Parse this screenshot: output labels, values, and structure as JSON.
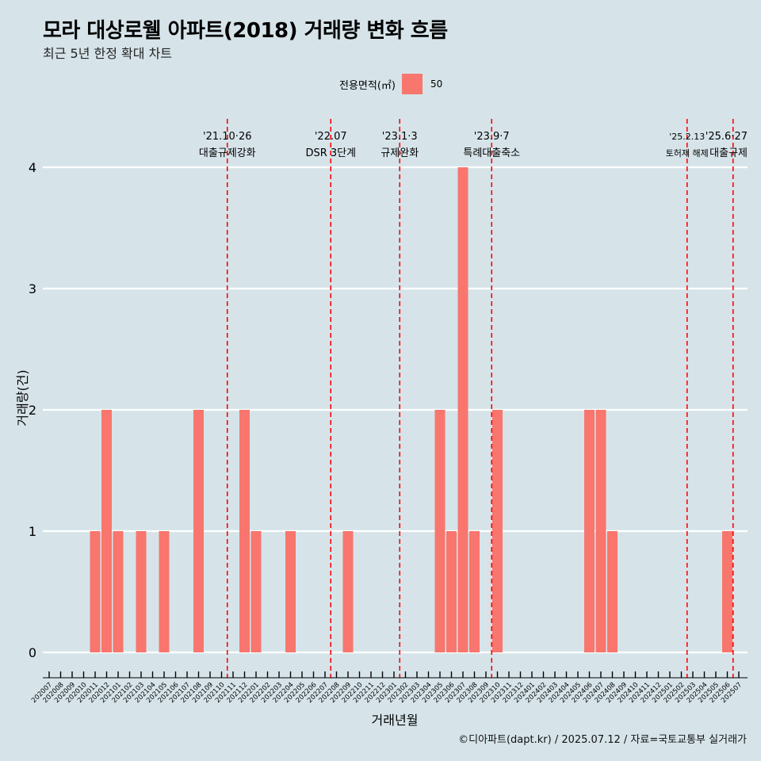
{
  "title": "모라 대상로웰 아파트(2018) 거래량 변화 흐름",
  "subtitle": "최근 5년 한정 확대 차트",
  "caption": "©디아파트(dapt.kr) / 2025.07.12 / 자료=국토교통부 실거래가",
  "legend": {
    "title": "전용면적(㎡)",
    "entries": [
      "50"
    ]
  },
  "colors": {
    "background": "#d6e4ea",
    "bar": "#f8766d",
    "event_line": "#ff0000",
    "grid": "#ffffff"
  },
  "chart_data": {
    "type": "bar",
    "title": "모라 대상로웰 아파트(2018) 거래량 변화 흐름",
    "subtitle": "최근 5년 한정 확대 차트",
    "xlabel": "거래년월",
    "ylabel": "거래량(건)",
    "ylim": [
      0,
      4
    ],
    "yticks": [
      0,
      1,
      2,
      3,
      4
    ],
    "grid": true,
    "legend_position": "top",
    "categories": [
      "202007",
      "202008",
      "202009",
      "202010",
      "202011",
      "202012",
      "202101",
      "202102",
      "202103",
      "202104",
      "202105",
      "202106",
      "202107",
      "202108",
      "202109",
      "202110",
      "202111",
      "202112",
      "202201",
      "202202",
      "202203",
      "202204",
      "202205",
      "202206",
      "202207",
      "202208",
      "202209",
      "202210",
      "202211",
      "202212",
      "202301",
      "202302",
      "202303",
      "202304",
      "202305",
      "202306",
      "202307",
      "202308",
      "202309",
      "202310",
      "202311",
      "202312",
      "202401",
      "202402",
      "202403",
      "202404",
      "202405",
      "202406",
      "202407",
      "202408",
      "202409",
      "202410",
      "202411",
      "202412",
      "202501",
      "202502",
      "202503",
      "202504",
      "202505",
      "202506",
      "202507"
    ],
    "series": [
      {
        "name": "50",
        "values": [
          null,
          null,
          null,
          null,
          1,
          2,
          1,
          null,
          1,
          null,
          1,
          null,
          null,
          2,
          null,
          null,
          null,
          2,
          1,
          null,
          null,
          1,
          null,
          null,
          null,
          null,
          1,
          null,
          null,
          null,
          null,
          null,
          null,
          null,
          2,
          1,
          4,
          1,
          null,
          2,
          null,
          null,
          null,
          null,
          null,
          null,
          null,
          2,
          2,
          1,
          null,
          null,
          null,
          null,
          null,
          null,
          null,
          null,
          null,
          1,
          null
        ]
      }
    ],
    "events": [
      {
        "x": "202110",
        "date": "'21.10·26",
        "label": "대출규제강화"
      },
      {
        "x": "202207",
        "date": "'22.07",
        "label": "DSR 3단계"
      },
      {
        "x": "202301",
        "date": "'23.1·3",
        "label": "규제완화"
      },
      {
        "x": "202309",
        "date": "'23.9·7",
        "label": "특례대출축소"
      },
      {
        "x": "202502",
        "date": "'25.2.13",
        "label": "토허제 해제"
      },
      {
        "x": "202506",
        "date": "'25.6·27",
        "label": "대출규제"
      }
    ]
  }
}
